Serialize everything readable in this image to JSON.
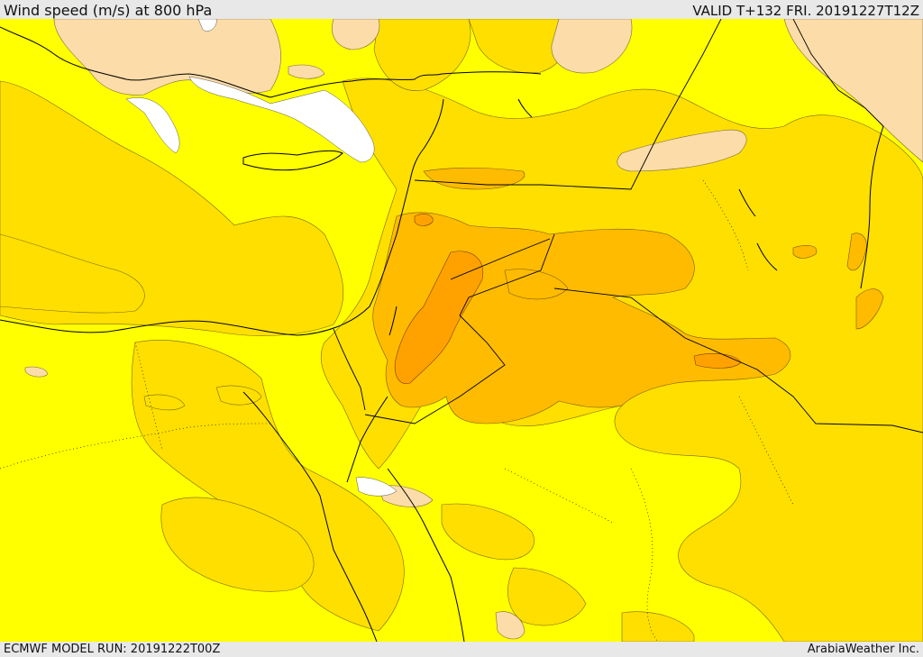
{
  "header": {
    "title": "Wind speed (m/s) at 800 hPa",
    "valid": "VALID T+132 FRI. 20191227T12Z"
  },
  "footer": {
    "model_run": "ECMWF MODEL RUN: 20191222T00Z",
    "credit": "ArabiaWeather Inc."
  },
  "map": {
    "colors": {
      "white": "#ffffff",
      "light_peach": "#fcdca8",
      "yellow": "#ffff00",
      "gold": "#ffdf00",
      "amber": "#ffbb00",
      "orange": "#ffa200",
      "border": "#000000"
    }
  }
}
